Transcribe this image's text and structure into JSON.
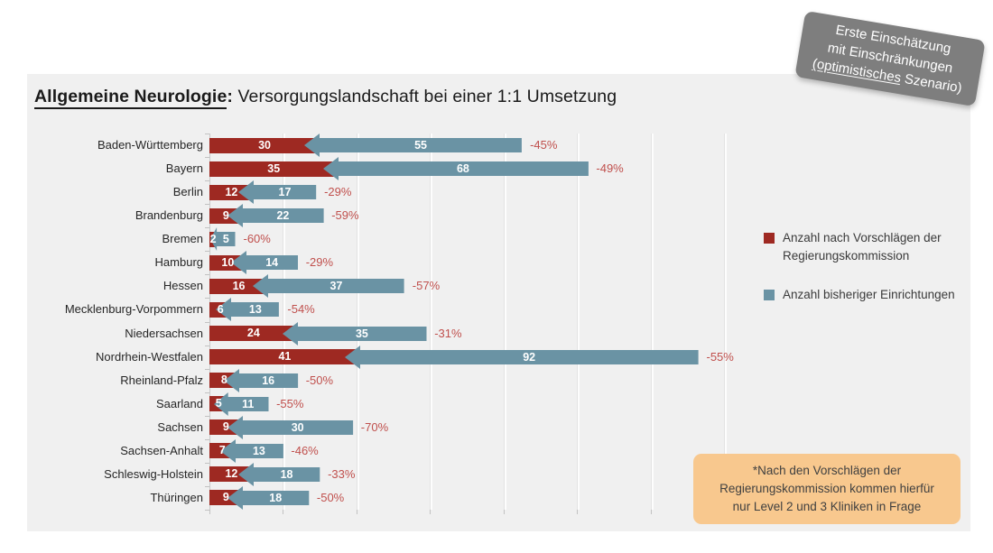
{
  "title": {
    "highlight": "Allgemeine Neurologie",
    "colon": ":",
    "rest": " Versorgungslandschaft bei einer 1:1 Umsetzung"
  },
  "badge": {
    "line1": "Erste Einschätzung",
    "line2": "mit Einschränkungen",
    "line3_underlined": "(optimistisches",
    "line3_rest": " Szenario)",
    "bg_color": "#7e7e7e"
  },
  "note": {
    "lines": [
      "*Nach den Vorschlägen der",
      "Regierungskommission kommen hierfür",
      "nur Level 2 und 3 Kliniken in Frage"
    ],
    "bg_color": "#f8c88e"
  },
  "colors": {
    "panel_bg": "#f0f0f0",
    "reduction_label": "#c0504d"
  },
  "chart_data": {
    "type": "bar",
    "orientation": "horizontal",
    "stacked": true,
    "grid": true,
    "legend_position": "right",
    "xlim": [
      0,
      140
    ],
    "gridline_interval": 20,
    "categories": [
      "Baden-Württemberg",
      "Bayern",
      "Berlin",
      "Brandenburg",
      "Bremen",
      "Hamburg",
      "Hessen",
      "Mecklenburg-Vorpommern",
      "Niedersachsen",
      "Nordrhein-Westfalen",
      "Rheinland-Pfalz",
      "Saarland",
      "Sachsen",
      "Sachsen-Anhalt",
      "Schleswig-Holstein",
      "Thüringen"
    ],
    "series": [
      {
        "name": "Anzahl nach Vorschlägen der Regierungskommission",
        "color": "#9e2922",
        "values": [
          30,
          35,
          12,
          9,
          2,
          10,
          16,
          6,
          24,
          41,
          8,
          5,
          9,
          7,
          12,
          9
        ]
      },
      {
        "name": "Anzahl bisheriger Einrichtungen",
        "color": "#6a93a4",
        "values": [
          55,
          68,
          17,
          22,
          5,
          14,
          37,
          13,
          35,
          92,
          16,
          11,
          30,
          13,
          18,
          18
        ]
      }
    ],
    "delta_labels": [
      "-45%",
      "-49%",
      "-29%",
      "-59%",
      "-60%",
      "-29%",
      "-57%",
      "-54%",
      "-31%",
      "-55%",
      "-50%",
      "-55%",
      "-70%",
      "-46%",
      "-33%",
      "-50%"
    ]
  }
}
